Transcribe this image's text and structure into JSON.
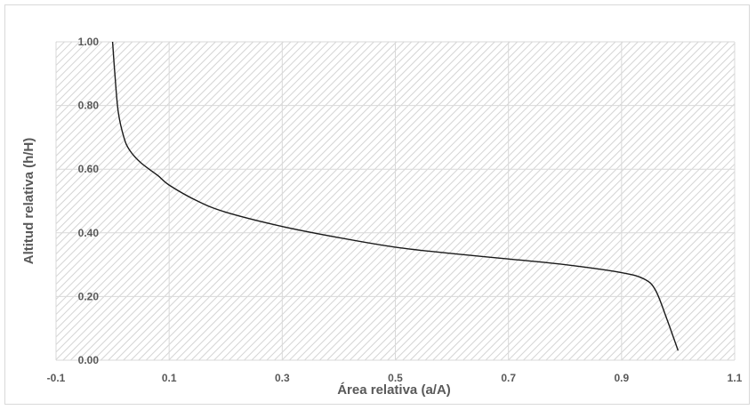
{
  "chart_data": {
    "type": "line",
    "title": "",
    "xlabel": "Área relativa (a/A)",
    "ylabel": "Altitud relativa (h/H)",
    "xlim": [
      -0.1,
      1.1
    ],
    "ylim": [
      0.0,
      1.0
    ],
    "x_ticks": [
      "-0.1",
      "0.1",
      "0.3",
      "0.5",
      "0.7",
      "0.9",
      "1.1"
    ],
    "y_ticks": [
      "0.00",
      "0.20",
      "0.40",
      "0.60",
      "0.80",
      "1.00"
    ],
    "grid": true,
    "legend": "none",
    "series": [
      {
        "x": [
          0.0,
          0.004,
          0.01,
          0.02,
          0.03,
          0.05,
          0.08,
          0.1,
          0.15,
          0.2,
          0.3,
          0.4,
          0.5,
          0.6,
          0.7,
          0.8,
          0.9,
          0.94,
          0.96,
          0.98,
          1.0
        ],
        "y": [
          1.0,
          0.9,
          0.78,
          0.7,
          0.66,
          0.62,
          0.58,
          0.55,
          0.5,
          0.465,
          0.42,
          0.385,
          0.355,
          0.335,
          0.318,
          0.3,
          0.275,
          0.255,
          0.22,
          0.13,
          0.03
        ]
      }
    ],
    "colors": {
      "line": "#1a1a1a",
      "grid": "#d9d9d9",
      "hatch": "#d4d4d4",
      "text": "#595959"
    }
  }
}
